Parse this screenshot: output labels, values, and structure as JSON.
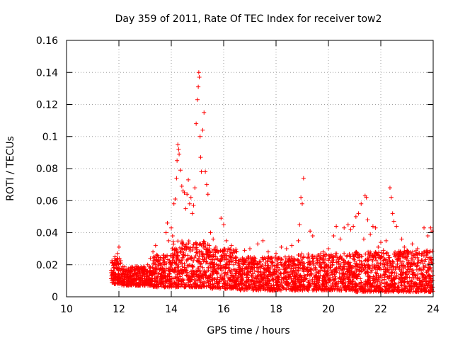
{
  "chart_data": {
    "type": "scatter",
    "title": "Day 359 of 2011, Rate Of TEC Index for receiver tow2",
    "xlabel": "GPS time / hours",
    "ylabel": "ROTI / TECUs",
    "xlim": [
      10,
      24
    ],
    "ylim": [
      0,
      0.16
    ],
    "xticks": [
      10,
      12,
      14,
      16,
      18,
      20,
      22,
      24
    ],
    "yticks": [
      0,
      0.02,
      0.04,
      0.06,
      0.08,
      0.1,
      0.12,
      0.14,
      0.16
    ],
    "xtick_labels": [
      "10",
      "12",
      "14",
      "16",
      "18",
      "20",
      "22",
      "24"
    ],
    "ytick_labels": [
      "0",
      "0.02",
      "0.04",
      "0.06",
      "0.08",
      "0.1",
      "0.12",
      "0.14",
      "0.16"
    ],
    "grid": true,
    "marker": "+",
    "series": [
      {
        "name": "ROTI",
        "color": "#ff0000",
        "points": [
          [
            11.72,
            0.013
          ],
          [
            11.75,
            0.021
          ],
          [
            11.8,
            0.016
          ],
          [
            11.85,
            0.025
          ],
          [
            11.9,
            0.018
          ],
          [
            11.95,
            0.027
          ],
          [
            12.0,
            0.031
          ],
          [
            12.05,
            0.012
          ],
          [
            12.1,
            0.009
          ],
          [
            12.2,
            0.011
          ],
          [
            12.35,
            0.016
          ],
          [
            12.5,
            0.013
          ],
          [
            12.65,
            0.019
          ],
          [
            12.8,
            0.012
          ],
          [
            12.95,
            0.017
          ],
          [
            13.1,
            0.02
          ],
          [
            13.2,
            0.024
          ],
          [
            13.3,
            0.028
          ],
          [
            13.4,
            0.032
          ],
          [
            13.5,
            0.022
          ],
          [
            13.6,
            0.018
          ],
          [
            13.7,
            0.026
          ],
          [
            13.8,
            0.04
          ],
          [
            13.85,
            0.046
          ],
          [
            13.9,
            0.035
          ],
          [
            14.0,
            0.043
          ],
          [
            14.05,
            0.038
          ],
          [
            14.1,
            0.058
          ],
          [
            14.15,
            0.061
          ],
          [
            14.2,
            0.074
          ],
          [
            14.22,
            0.085
          ],
          [
            14.25,
            0.095
          ],
          [
            14.28,
            0.092
          ],
          [
            14.3,
            0.089
          ],
          [
            14.35,
            0.079
          ],
          [
            14.4,
            0.069
          ],
          [
            14.45,
            0.066
          ],
          [
            14.5,
            0.065
          ],
          [
            14.55,
            0.055
          ],
          [
            14.6,
            0.064
          ],
          [
            14.65,
            0.073
          ],
          [
            14.7,
            0.058
          ],
          [
            14.75,
            0.062
          ],
          [
            14.8,
            0.052
          ],
          [
            14.85,
            0.057
          ],
          [
            14.9,
            0.068
          ],
          [
            14.95,
            0.108
          ],
          [
            15.0,
            0.123
          ],
          [
            15.03,
            0.131
          ],
          [
            15.05,
            0.14
          ],
          [
            15.07,
            0.137
          ],
          [
            15.1,
            0.1
          ],
          [
            15.12,
            0.087
          ],
          [
            15.15,
            0.078
          ],
          [
            15.2,
            0.104
          ],
          [
            15.25,
            0.115
          ],
          [
            15.3,
            0.078
          ],
          [
            15.35,
            0.07
          ],
          [
            15.4,
            0.064
          ],
          [
            15.5,
            0.04
          ],
          [
            15.6,
            0.036
          ],
          [
            15.7,
            0.031
          ],
          [
            15.8,
            0.028
          ],
          [
            15.9,
            0.049
          ],
          [
            16.0,
            0.045
          ],
          [
            16.1,
            0.035
          ],
          [
            16.3,
            0.032
          ],
          [
            16.5,
            0.028
          ],
          [
            16.8,
            0.029
          ],
          [
            17.0,
            0.03
          ],
          [
            17.3,
            0.033
          ],
          [
            17.5,
            0.035
          ],
          [
            17.7,
            0.028
          ],
          [
            18.0,
            0.027
          ],
          [
            18.2,
            0.031
          ],
          [
            18.4,
            0.03
          ],
          [
            18.6,
            0.032
          ],
          [
            18.85,
            0.035
          ],
          [
            18.9,
            0.045
          ],
          [
            18.95,
            0.062
          ],
          [
            19.0,
            0.058
          ],
          [
            19.05,
            0.074
          ],
          [
            19.3,
            0.041
          ],
          [
            19.4,
            0.038
          ],
          [
            19.6,
            0.026
          ],
          [
            19.8,
            0.028
          ],
          [
            20.0,
            0.03
          ],
          [
            20.2,
            0.038
          ],
          [
            20.3,
            0.044
          ],
          [
            20.45,
            0.036
          ],
          [
            20.6,
            0.043
          ],
          [
            20.75,
            0.045
          ],
          [
            20.85,
            0.042
          ],
          [
            20.95,
            0.044
          ],
          [
            21.05,
            0.05
          ],
          [
            21.15,
            0.052
          ],
          [
            21.25,
            0.058
          ],
          [
            21.35,
            0.036
          ],
          [
            21.4,
            0.063
          ],
          [
            21.45,
            0.062
          ],
          [
            21.5,
            0.048
          ],
          [
            21.6,
            0.039
          ],
          [
            21.7,
            0.044
          ],
          [
            21.8,
            0.043
          ],
          [
            21.9,
            0.031
          ],
          [
            22.0,
            0.034
          ],
          [
            22.1,
            0.029
          ],
          [
            22.2,
            0.035
          ],
          [
            22.35,
            0.068
          ],
          [
            22.4,
            0.062
          ],
          [
            22.45,
            0.052
          ],
          [
            22.5,
            0.047
          ],
          [
            22.6,
            0.044
          ],
          [
            22.7,
            0.025
          ],
          [
            22.8,
            0.036
          ],
          [
            22.9,
            0.031
          ],
          [
            23.0,
            0.029
          ],
          [
            23.2,
            0.033
          ],
          [
            23.4,
            0.03
          ],
          [
            23.55,
            0.026
          ],
          [
            23.65,
            0.043
          ],
          [
            23.8,
            0.038
          ],
          [
            23.9,
            0.043
          ],
          [
            23.95,
            0.041
          ]
        ],
        "bands": [
          {
            "x": [
              11.7,
              12.1
            ],
            "y": [
              0.008,
              0.024
            ]
          },
          {
            "x": [
              12.1,
              13.3
            ],
            "y": [
              0.007,
              0.019
            ]
          },
          {
            "x": [
              13.3,
              14.0
            ],
            "y": [
              0.006,
              0.027
            ]
          },
          {
            "x": [
              14.0,
              15.5
            ],
            "y": [
              0.006,
              0.035
            ]
          },
          {
            "x": [
              15.5,
              16.5
            ],
            "y": [
              0.005,
              0.03
            ]
          },
          {
            "x": [
              16.5,
              18.8
            ],
            "y": [
              0.004,
              0.025
            ]
          },
          {
            "x": [
              18.8,
              19.5
            ],
            "y": [
              0.004,
              0.027
            ]
          },
          {
            "x": [
              19.5,
              21.0
            ],
            "y": [
              0.004,
              0.027
            ]
          },
          {
            "x": [
              21.0,
              22.5
            ],
            "y": [
              0.003,
              0.028
            ]
          },
          {
            "x": [
              22.5,
              24.0
            ],
            "y": [
              0.003,
              0.029
            ]
          }
        ]
      }
    ]
  }
}
